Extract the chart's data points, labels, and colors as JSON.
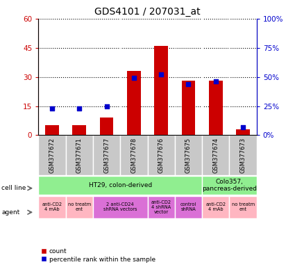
{
  "title": "GDS4101 / 207031_at",
  "samples": [
    "GSM377672",
    "GSM377671",
    "GSM377677",
    "GSM377678",
    "GSM377676",
    "GSM377675",
    "GSM377674",
    "GSM377673"
  ],
  "count_values": [
    5,
    5,
    9,
    33,
    46,
    28,
    28,
    3
  ],
  "percentile_values": [
    23,
    23,
    25,
    49,
    52,
    44,
    46,
    7
  ],
  "ylim_left": [
    0,
    60
  ],
  "ylim_right": [
    0,
    100
  ],
  "yticks_left": [
    0,
    15,
    30,
    45,
    60
  ],
  "yticks_right": [
    0,
    25,
    50,
    75,
    100
  ],
  "ytick_labels_right": [
    "0%",
    "25%",
    "50%",
    "75%",
    "100%"
  ],
  "cell_line_groups": [
    {
      "label": "HT29, colon-derived",
      "start": 0,
      "end": 6,
      "color": "#90EE90"
    },
    {
      "label": "Colo357,\npancreas-derived",
      "start": 6,
      "end": 8,
      "color": "#90EE90"
    }
  ],
  "agent_groups": [
    {
      "label": "anti-CD2\n4 mAb",
      "start": 0,
      "end": 1,
      "color": "#FFB6C1"
    },
    {
      "label": "no treatm\nent",
      "start": 1,
      "end": 2,
      "color": "#FFB6C1"
    },
    {
      "label": "2 anti-CD24\nshRNA vectors",
      "start": 2,
      "end": 4,
      "color": "#DA70D6"
    },
    {
      "label": "anti-CD2\n4 shRNA\nvector",
      "start": 4,
      "end": 5,
      "color": "#DA70D6"
    },
    {
      "label": "control\nshRNA",
      "start": 5,
      "end": 6,
      "color": "#DA70D6"
    },
    {
      "label": "anti-CD2\n4 mAb",
      "start": 6,
      "end": 7,
      "color": "#FFB6C1"
    },
    {
      "label": "no treatm\nent",
      "start": 7,
      "end": 8,
      "color": "#FFB6C1"
    }
  ],
  "bar_color": "#CC0000",
  "dot_color": "#0000CC",
  "left_axis_color": "#CC0000",
  "right_axis_color": "#0000CC",
  "plot_bg_color": "#FFFFFF",
  "sample_box_color": "#C8C8C8",
  "legend_items": [
    {
      "label": "count",
      "color": "#CC0000"
    },
    {
      "label": "percentile rank within the sample",
      "color": "#0000CC"
    }
  ]
}
